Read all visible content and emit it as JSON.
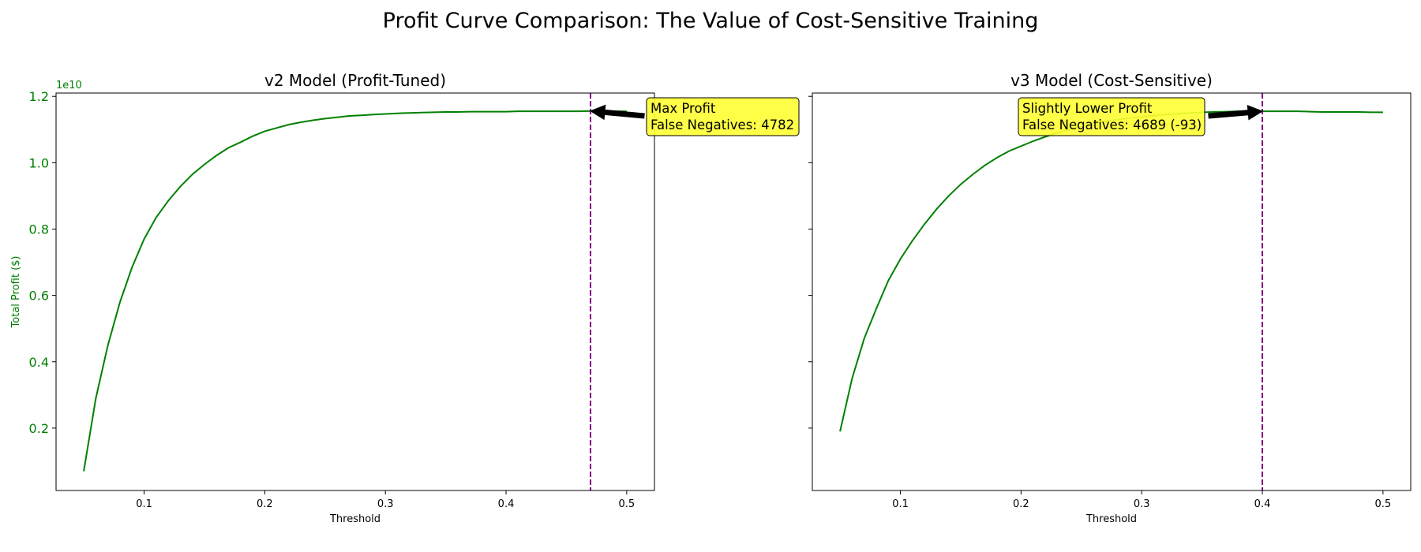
{
  "figure": {
    "title": "Profit Curve Comparison: The Value of Cost-Sensitive Training",
    "accent_color": "#008000",
    "vline_color": "#800080",
    "annotation_color": "#ffff33"
  },
  "chart_data": [
    {
      "type": "line",
      "title": "v2 Model (Profit-Tuned)",
      "xlabel": "Threshold",
      "ylabel": "Total Profit ($)",
      "y_offset_label": "1e10",
      "xlim": [
        0.027,
        0.523
      ],
      "ylim": [
        0.012,
        1.21
      ],
      "xticks": [
        0.1,
        0.2,
        0.3,
        0.4,
        0.5
      ],
      "xtick_labels": [
        "0.1",
        "0.2",
        "0.3",
        "0.4",
        "0.5"
      ],
      "yticks": [
        0.2,
        0.4,
        0.6,
        0.8,
        1.0,
        1.2
      ],
      "ytick_labels": [
        "0.2",
        "0.4",
        "0.6",
        "0.8",
        "1.0",
        "1.2"
      ],
      "series": [
        {
          "x": [
            0.05,
            0.06,
            0.07,
            0.08,
            0.09,
            0.1,
            0.11,
            0.12,
            0.13,
            0.14,
            0.15,
            0.16,
            0.17,
            0.18,
            0.19,
            0.2,
            0.21,
            0.22,
            0.23,
            0.24,
            0.25,
            0.26,
            0.27,
            0.28,
            0.29,
            0.3,
            0.31,
            0.32,
            0.33,
            0.34,
            0.35,
            0.36,
            0.37,
            0.38,
            0.39,
            0.4,
            0.41,
            0.42,
            0.43,
            0.44,
            0.45,
            0.46,
            0.47,
            0.48,
            0.49,
            0.5
          ],
          "y": [
            0.07,
            0.29,
            0.45,
            0.58,
            0.685,
            0.77,
            0.835,
            0.885,
            0.928,
            0.965,
            0.995,
            1.022,
            1.045,
            1.062,
            1.08,
            1.095,
            1.105,
            1.115,
            1.122,
            1.128,
            1.133,
            1.137,
            1.141,
            1.143,
            1.145,
            1.147,
            1.149,
            1.15,
            1.151,
            1.152,
            1.153,
            1.153,
            1.154,
            1.154,
            1.154,
            1.154,
            1.155,
            1.155,
            1.155,
            1.155,
            1.155,
            1.155,
            1.156,
            1.155,
            1.155,
            1.155
          ]
        }
      ],
      "vline_x": 0.47,
      "annotation": {
        "text_lines": [
          "Max Profit",
          "False Negatives: 4782"
        ],
        "point": [
          0.47,
          1.156
        ]
      }
    },
    {
      "type": "line",
      "title": "v3 Model (Cost-Sensitive)",
      "xlabel": "Threshold",
      "xlim": [
        0.027,
        0.523
      ],
      "ylim": [
        0.012,
        1.21
      ],
      "xticks": [
        0.1,
        0.2,
        0.3,
        0.4,
        0.5
      ],
      "xtick_labels": [
        "0.1",
        "0.2",
        "0.3",
        "0.4",
        "0.5"
      ],
      "yticks": [
        0.2,
        0.4,
        0.6,
        0.8,
        1.0,
        1.2
      ],
      "series": [
        {
          "x": [
            0.05,
            0.06,
            0.07,
            0.08,
            0.09,
            0.1,
            0.11,
            0.12,
            0.13,
            0.14,
            0.15,
            0.16,
            0.17,
            0.18,
            0.19,
            0.2,
            0.21,
            0.22,
            0.23,
            0.24,
            0.25,
            0.26,
            0.27,
            0.28,
            0.29,
            0.3,
            0.31,
            0.32,
            0.33,
            0.34,
            0.35,
            0.36,
            0.37,
            0.38,
            0.39,
            0.4,
            0.41,
            0.42,
            0.43,
            0.44,
            0.45,
            0.46,
            0.47,
            0.48,
            0.49,
            0.5
          ],
          "y": [
            0.19,
            0.35,
            0.47,
            0.56,
            0.645,
            0.71,
            0.765,
            0.815,
            0.86,
            0.9,
            0.935,
            0.965,
            0.992,
            1.015,
            1.035,
            1.05,
            1.065,
            1.078,
            1.09,
            1.1,
            1.11,
            1.118,
            1.125,
            1.13,
            1.135,
            1.138,
            1.142,
            1.145,
            1.148,
            1.15,
            1.152,
            1.153,
            1.154,
            1.155,
            1.155,
            1.155,
            1.155,
            1.155,
            1.155,
            1.154,
            1.153,
            1.153,
            1.153,
            1.153,
            1.152,
            1.152
          ]
        }
      ],
      "vline_x": 0.4,
      "annotation": {
        "text_lines": [
          "Slightly Lower Profit",
          "False Negatives: 4689 (-93)"
        ],
        "point": [
          0.4,
          1.155
        ]
      }
    }
  ]
}
